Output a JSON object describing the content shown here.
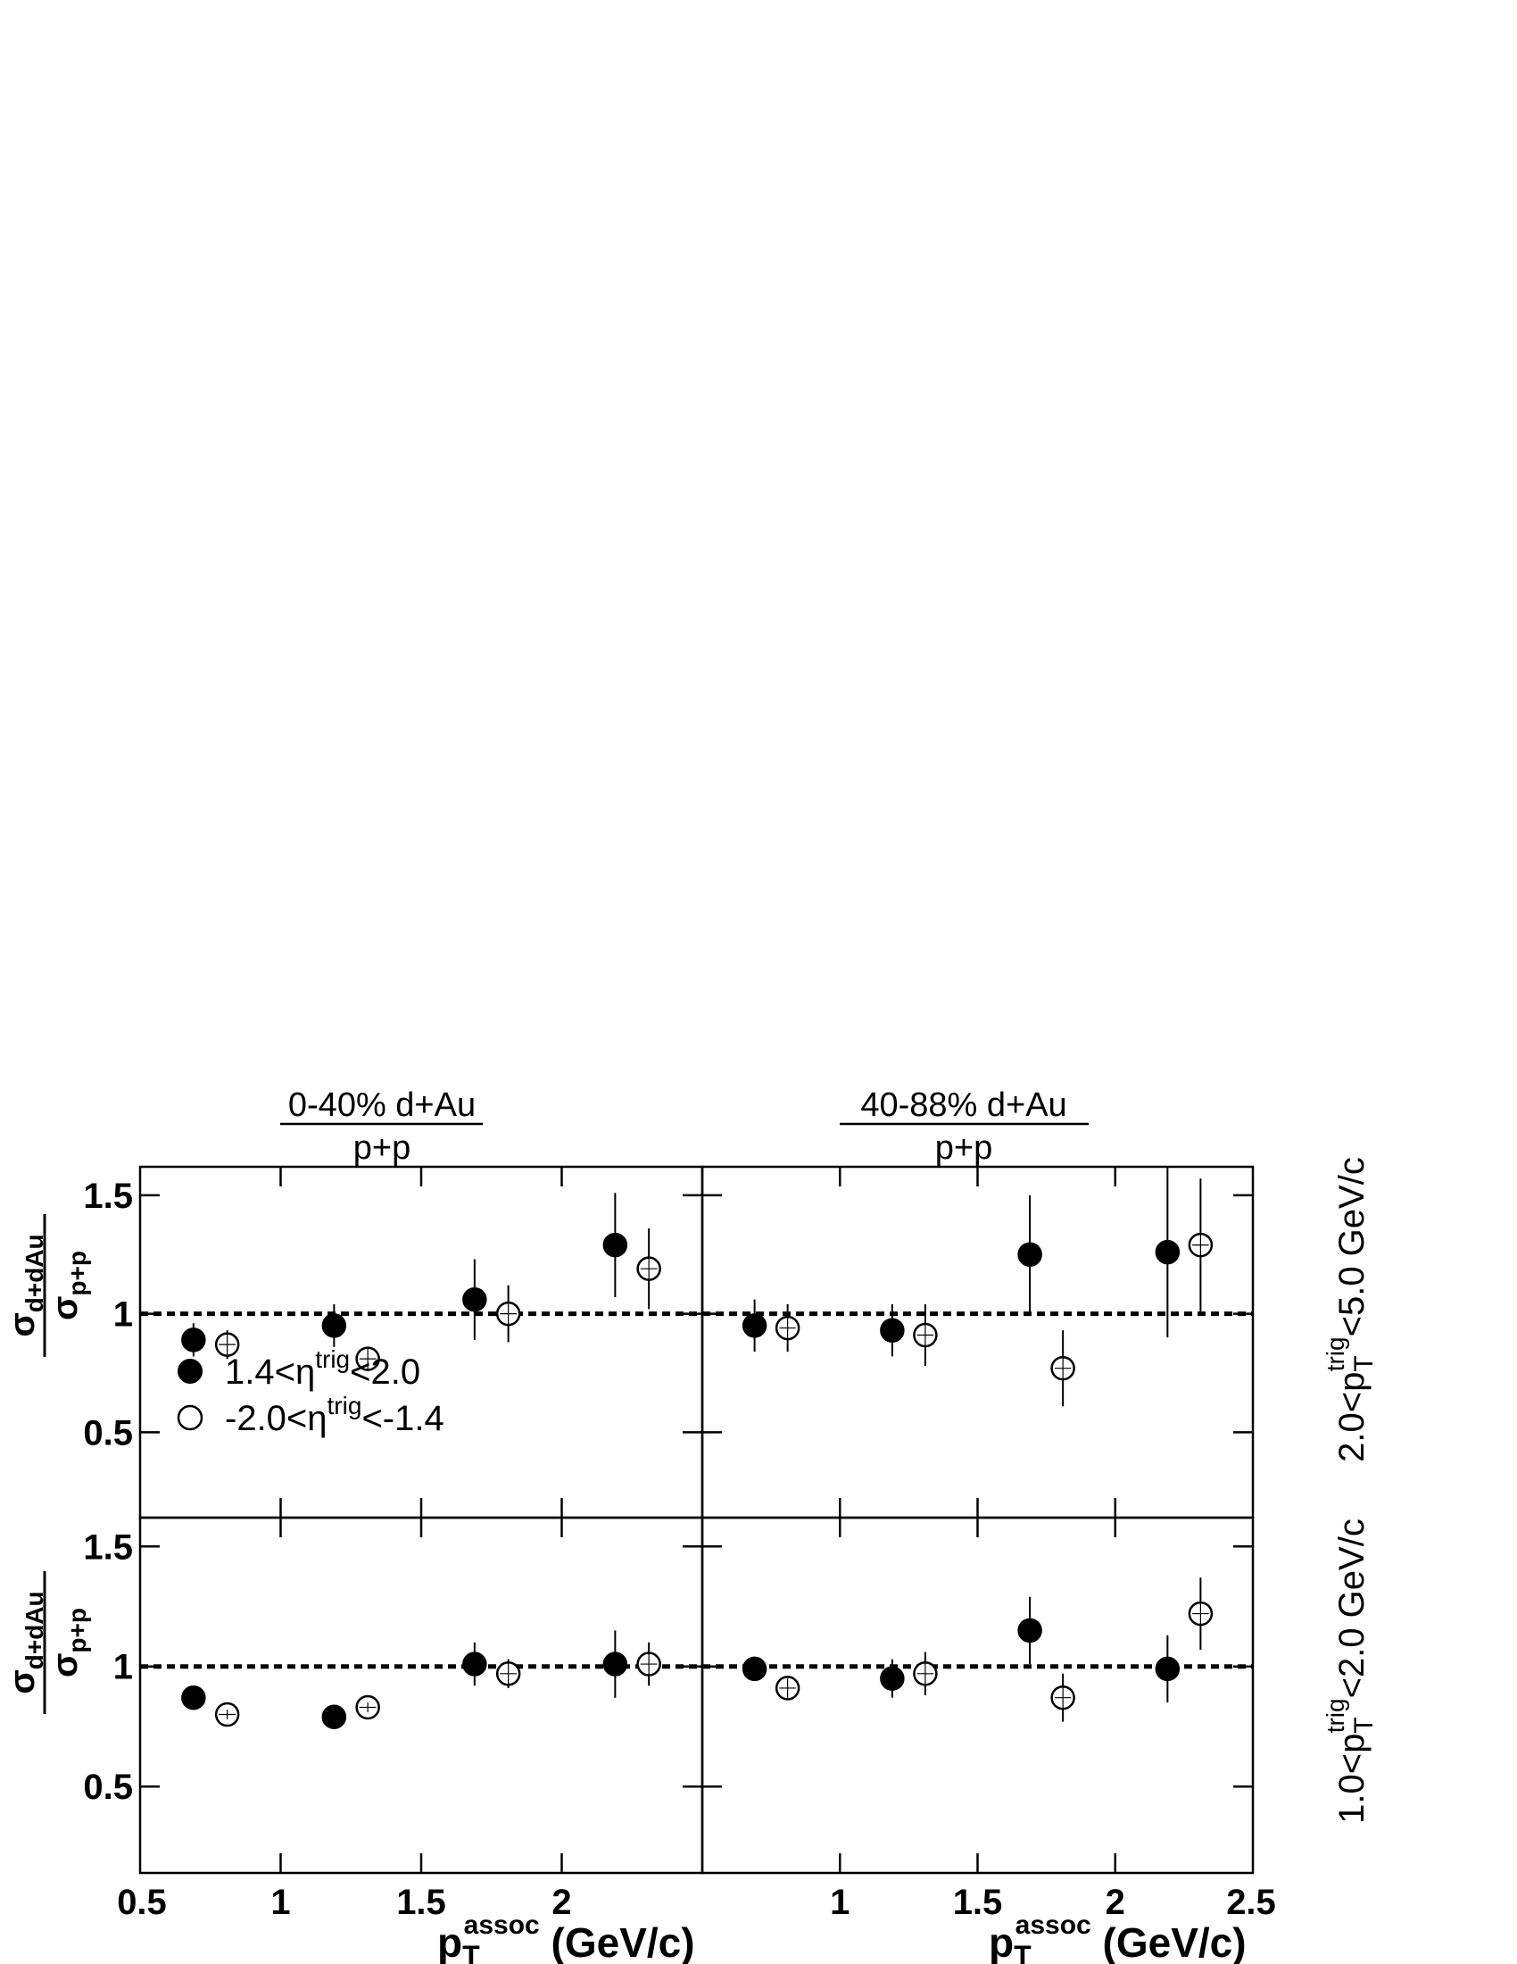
{
  "figure": {
    "columns": [
      {
        "title_top": "0-40% d+Au",
        "title_bottom": "p+p"
      },
      {
        "title_top": "40-88% d+Au",
        "title_bottom": "p+p"
      }
    ],
    "rows": [
      {
        "label_pre": "2.0<p",
        "label_sub": "T",
        "label_sup": "trig",
        "label_post": "<5.0 GeV/c"
      },
      {
        "label_pre": "1.0<p",
        "label_sub": "T",
        "label_sup": "trig",
        "label_post": "<2.0 GeV/c"
      }
    ],
    "ylabel": {
      "num": "σ",
      "num_sub": "d+dAu",
      "den": "σ",
      "den_sub": "p+p"
    },
    "xlabel": {
      "main": "p",
      "sub": "T",
      "sup": "assoc",
      "units": " (GeV/c)"
    },
    "legend": [
      {
        "pre": "1.4<η",
        "sup": "trig",
        "post": "<2.0",
        "marker": "filled-circle"
      },
      {
        "pre": "-2.0<η",
        "sup": "trig",
        "post": "<-1.4",
        "marker": "open-circle"
      }
    ]
  },
  "chart_data": [
    {
      "type": "scatter",
      "panel": "top-left",
      "xlim": [
        0.5,
        2.5
      ],
      "ylim": [
        0.14,
        1.62
      ],
      "y_ticks": [
        "0.5",
        "1",
        "1.5"
      ],
      "x_ticks": [],
      "reference_y": 1.0,
      "series": [
        {
          "name": "1.4<η^trig<2.0",
          "marker": "filled",
          "points": [
            {
              "x": 0.69,
              "y": 0.89,
              "yerr": 0.07,
              "xerr": 0.03
            },
            {
              "x": 1.19,
              "y": 0.95,
              "yerr": 0.09,
              "xerr": 0.03
            },
            {
              "x": 1.69,
              "y": 1.06,
              "yerr": 0.17,
              "xerr": 0.03
            },
            {
              "x": 2.19,
              "y": 1.29,
              "yerr": 0.22,
              "xerr": 0.03
            }
          ]
        },
        {
          "name": "-2.0<η^trig<-1.4",
          "marker": "open",
          "points": [
            {
              "x": 0.81,
              "y": 0.87,
              "yerr": 0.06,
              "xerr": 0.03
            },
            {
              "x": 1.31,
              "y": 0.81,
              "yerr": 0.05,
              "xerr": 0.03
            },
            {
              "x": 1.81,
              "y": 1.0,
              "yerr": 0.12,
              "xerr": 0.03
            },
            {
              "x": 2.31,
              "y": 1.19,
              "yerr": 0.17,
              "xerr": 0.03
            }
          ]
        }
      ]
    },
    {
      "type": "scatter",
      "panel": "top-right",
      "xlim": [
        0.5,
        2.5
      ],
      "ylim": [
        0.14,
        1.62
      ],
      "y_ticks": [],
      "x_ticks": [],
      "reference_y": 1.0,
      "series": [
        {
          "name": "1.4<η^trig<2.0",
          "marker": "filled",
          "points": [
            {
              "x": 0.69,
              "y": 0.95,
              "yerr": 0.11,
              "xerr": 0.03
            },
            {
              "x": 1.19,
              "y": 0.93,
              "yerr": 0.11,
              "xerr": 0.03
            },
            {
              "x": 1.69,
              "y": 1.25,
              "yerr": 0.25,
              "xerr": 0.03
            },
            {
              "x": 2.19,
              "y": 1.26,
              "yerr": 0.36,
              "xerr": 0.03
            }
          ]
        },
        {
          "name": "-2.0<η^trig<-1.4",
          "marker": "open",
          "points": [
            {
              "x": 0.81,
              "y": 0.94,
              "yerr": 0.1,
              "xerr": 0.03
            },
            {
              "x": 1.31,
              "y": 0.91,
              "yerr": 0.13,
              "xerr": 0.03
            },
            {
              "x": 1.81,
              "y": 0.77,
              "yerr": 0.16,
              "xerr": 0.03
            },
            {
              "x": 2.31,
              "y": 1.29,
              "yerr": 0.28,
              "xerr": 0.03
            }
          ]
        }
      ]
    },
    {
      "type": "scatter",
      "panel": "bottom-left",
      "xlim": [
        0.5,
        2.5
      ],
      "ylim": [
        0.14,
        1.62
      ],
      "y_ticks": [
        "0.5",
        "1",
        "1.5"
      ],
      "x_ticks": [
        "0.5",
        "1",
        "1.5",
        "2"
      ],
      "reference_y": 1.0,
      "series": [
        {
          "name": "1.4<η^trig<2.0",
          "marker": "filled",
          "points": [
            {
              "x": 0.69,
              "y": 0.87,
              "yerr": 0.02,
              "xerr": 0.03
            },
            {
              "x": 1.19,
              "y": 0.79,
              "yerr": 0.02,
              "xerr": 0.03
            },
            {
              "x": 1.69,
              "y": 1.01,
              "yerr": 0.09,
              "xerr": 0.03
            },
            {
              "x": 2.19,
              "y": 1.01,
              "yerr": 0.14,
              "xerr": 0.03
            }
          ]
        },
        {
          "name": "-2.0<η^trig<-1.4",
          "marker": "open",
          "points": [
            {
              "x": 0.81,
              "y": 0.8,
              "yerr": 0.02,
              "xerr": 0.03
            },
            {
              "x": 1.31,
              "y": 0.83,
              "yerr": 0.02,
              "xerr": 0.03
            },
            {
              "x": 1.81,
              "y": 0.97,
              "yerr": 0.06,
              "xerr": 0.03
            },
            {
              "x": 2.31,
              "y": 1.01,
              "yerr": 0.09,
              "xerr": 0.03
            }
          ]
        }
      ]
    },
    {
      "type": "scatter",
      "panel": "bottom-right",
      "xlim": [
        0.5,
        2.5
      ],
      "ylim": [
        0.14,
        1.62
      ],
      "y_ticks": [],
      "x_ticks": [
        "1",
        "1.5",
        "2",
        "2.5"
      ],
      "reference_y": 1.0,
      "series": [
        {
          "name": "1.4<η^trig<2.0",
          "marker": "filled",
          "points": [
            {
              "x": 0.69,
              "y": 0.99,
              "yerr": 0.05,
              "xerr": 0.03
            },
            {
              "x": 1.19,
              "y": 0.95,
              "yerr": 0.08,
              "xerr": 0.03
            },
            {
              "x": 1.69,
              "y": 1.15,
              "yerr": 0.14,
              "xerr": 0.03
            },
            {
              "x": 2.19,
              "y": 0.99,
              "yerr": 0.14,
              "xerr": 0.03
            }
          ]
        },
        {
          "name": "-2.0<η^trig<-1.4",
          "marker": "open",
          "points": [
            {
              "x": 0.81,
              "y": 0.91,
              "yerr": 0.04,
              "xerr": 0.03
            },
            {
              "x": 1.31,
              "y": 0.97,
              "yerr": 0.09,
              "xerr": 0.03
            },
            {
              "x": 1.81,
              "y": 0.87,
              "yerr": 0.1,
              "xerr": 0.03
            },
            {
              "x": 2.31,
              "y": 1.22,
              "yerr": 0.15,
              "xerr": 0.03
            }
          ]
        }
      ]
    }
  ]
}
